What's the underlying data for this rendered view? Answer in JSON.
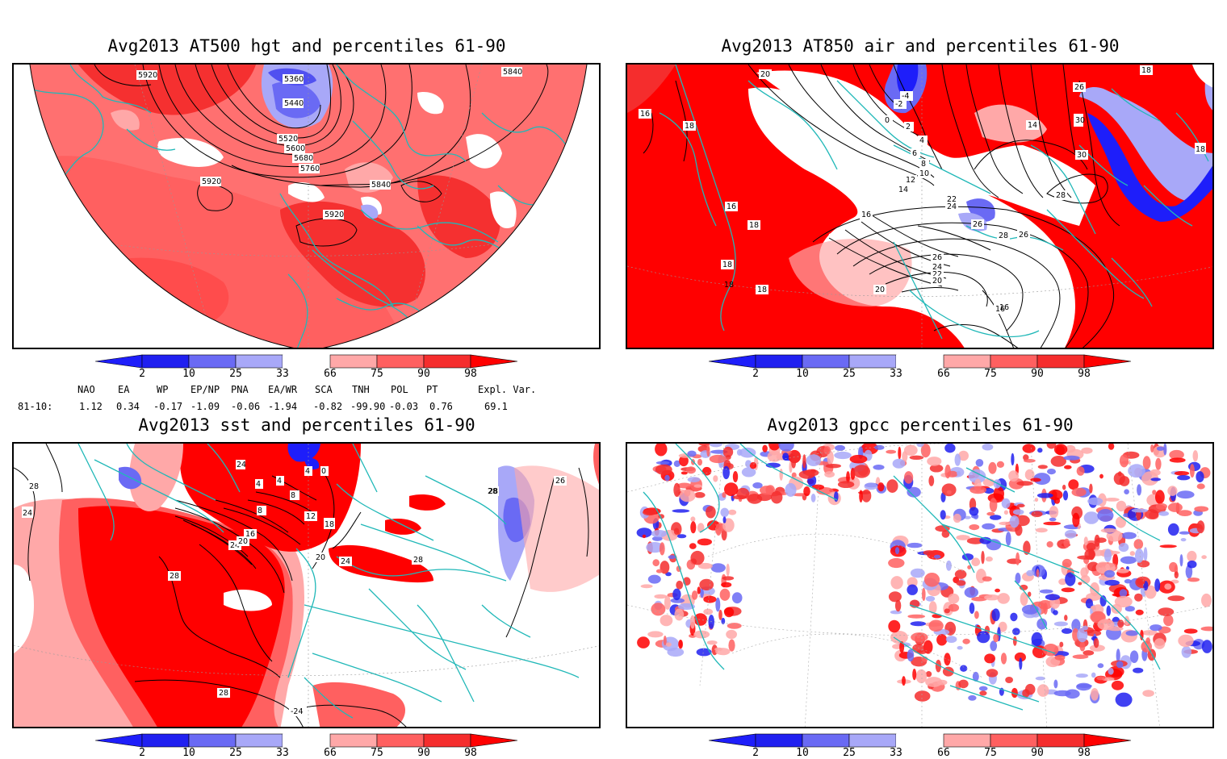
{
  "panels": [
    {
      "id": "hgt",
      "title": "Avg2013 AT500 hgt and percentiles 61-90",
      "contour_labels": [
        "5920",
        "5360",
        "5440",
        "5520",
        "5600",
        "5680",
        "5760",
        "5840",
        "5920",
        "5840",
        "5920"
      ]
    },
    {
      "id": "air",
      "title": "Avg2013 AT850 air and percentiles 61-90",
      "contour_labels": [
        "20",
        "-4",
        "-2",
        "0",
        "2",
        "4",
        "6",
        "8",
        "10",
        "12",
        "14",
        "16",
        "18",
        "16",
        "18",
        "18",
        "18",
        "18",
        "20",
        "22",
        "24",
        "26",
        "28",
        "26",
        "24",
        "22",
        "20",
        "16",
        "14",
        "26",
        "30",
        "30",
        "28",
        "18",
        "16",
        "16",
        "26",
        "18"
      ]
    },
    {
      "id": "sst",
      "title": "Avg2013 sst and percentiles 61-90",
      "contour_labels": [
        "28",
        "24",
        "28",
        "28",
        "24",
        "4",
        "0",
        "4",
        "8",
        "4",
        "8",
        "12",
        "16",
        "18",
        "20",
        "24",
        "20",
        "24",
        "28",
        "28",
        "-24",
        "28",
        "26"
      ]
    },
    {
      "id": "gpcc",
      "title": "Avg2013 gpcc percentiles 61-90",
      "contour_labels": []
    }
  ],
  "colorbar": {
    "labels": [
      "2",
      "10",
      "25",
      "33",
      "66",
      "75",
      "90",
      "98"
    ],
    "colors": {
      "lt2": "#1e1efa",
      "c2_10": "#2020f0",
      "c10_25": "#6a6af4",
      "c25_33": "#a8a8f8",
      "c33_66": "#ffffff",
      "c66_75": "#ffa8a8",
      "c75_90": "#ff6060",
      "c90_98": "#f52d2d",
      "gt98": "#ff0000"
    }
  },
  "indices": {
    "headers": [
      "NAO",
      "EA",
      "WP",
      "EP/NP",
      "PNA",
      "EA/WR",
      "SCA",
      "TNH",
      "POL",
      "PT",
      "Expl. Var."
    ],
    "row_label": "81-10:",
    "values": [
      "1.12",
      "0.34",
      "-0.17",
      "-1.09",
      "-0.06",
      "-1.94",
      "-0.82",
      "-99.90",
      "-0.03",
      "0.76",
      "69.1"
    ]
  }
}
